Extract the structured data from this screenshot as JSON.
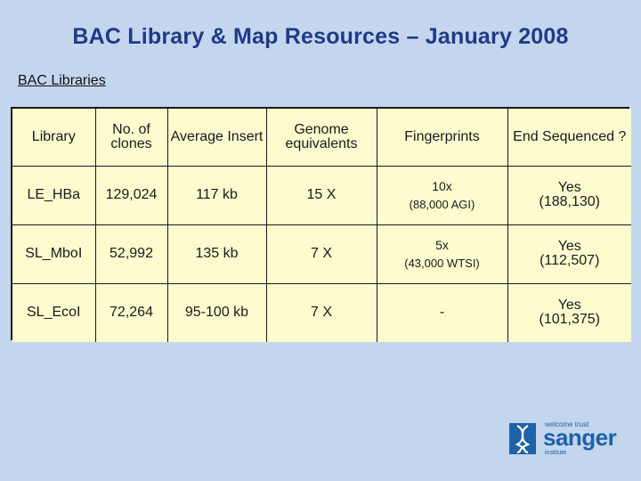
{
  "title": "BAC Library & Map Resources – January 2008",
  "section_heading": "BAC Libraries",
  "table": {
    "headers": {
      "library": "Library",
      "clones": "No. of clones",
      "insert": "Average Insert",
      "genome": "Genome equivalents",
      "fingerprints": "Fingerprints",
      "end_sequenced": "End Sequenced ?"
    },
    "rows": [
      {
        "library": "LE_HBa",
        "clones": "129,024",
        "insert": "117 kb",
        "genome": "15 X",
        "fingerprints": "10x",
        "fingerprints_detail": "(88,000 AGI)",
        "end_sequenced": "Yes",
        "end_sequenced_detail": "(188,130)"
      },
      {
        "library": "SL_MboI",
        "clones": "52,992",
        "insert": "135 kb",
        "genome": "7 X",
        "fingerprints": "5x",
        "fingerprints_detail": "(43,000 WTSI)",
        "end_sequenced": "Yes",
        "end_sequenced_detail": "(112,507)"
      },
      {
        "library": "SL_EcoI",
        "clones": "72,264",
        "insert": "95-100 kb",
        "genome": "7 X",
        "fingerprints": "-",
        "fingerprints_detail": "",
        "end_sequenced": "Yes",
        "end_sequenced_detail": "(101,375)"
      }
    ]
  },
  "logo": {
    "top_text": "welcome trust",
    "main_text": "sanger",
    "bottom_text": "institute",
    "icon": "dna-helix-icon"
  },
  "colors": {
    "background": "#c4d6ee",
    "title": "#1f3a87",
    "table_fill": "#fdfccf",
    "logo": "#1e62a8"
  }
}
